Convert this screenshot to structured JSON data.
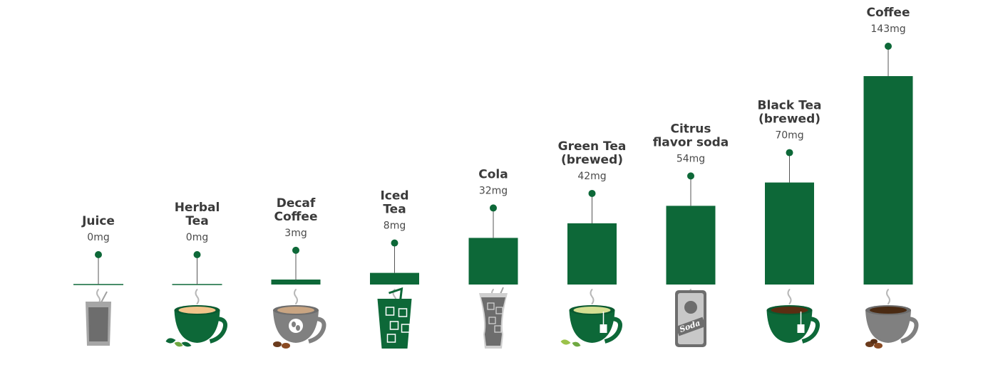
{
  "chart_data": {
    "type": "bar",
    "categories": [
      [
        "Juice"
      ],
      [
        "Herbal",
        "Tea"
      ],
      [
        "Decaf",
        "Coffee"
      ],
      [
        "Iced",
        "Tea"
      ],
      [
        "Cola"
      ],
      [
        "Green Tea",
        "(brewed)"
      ],
      [
        "Citrus",
        "flavor soda"
      ],
      [
        "Black Tea",
        "(brewed)"
      ],
      [
        "Coffee"
      ]
    ],
    "values": [
      0,
      0,
      3,
      8,
      32,
      42,
      54,
      70,
      143
    ],
    "value_labels": [
      "0mg",
      "0mg",
      "3mg",
      "8mg",
      "32mg",
      "42mg",
      "54mg",
      "70mg",
      "143mg"
    ],
    "icons": [
      "juice-glass-icon",
      "herbal-tea-cup-icon",
      "decaf-coffee-cup-icon",
      "iced-tea-glass-icon",
      "cola-glass-icon",
      "green-tea-cup-icon",
      "soda-can-icon",
      "black-tea-cup-icon",
      "coffee-cup-icon"
    ],
    "soda_can_text": "Soda",
    "ylim": [
      0,
      143
    ],
    "grid": false,
    "colors": {
      "bar": "#0d6838",
      "dark_gray": "#6d6d6d",
      "light_gray": "#a6a6a6",
      "white": "#ffffff"
    }
  }
}
